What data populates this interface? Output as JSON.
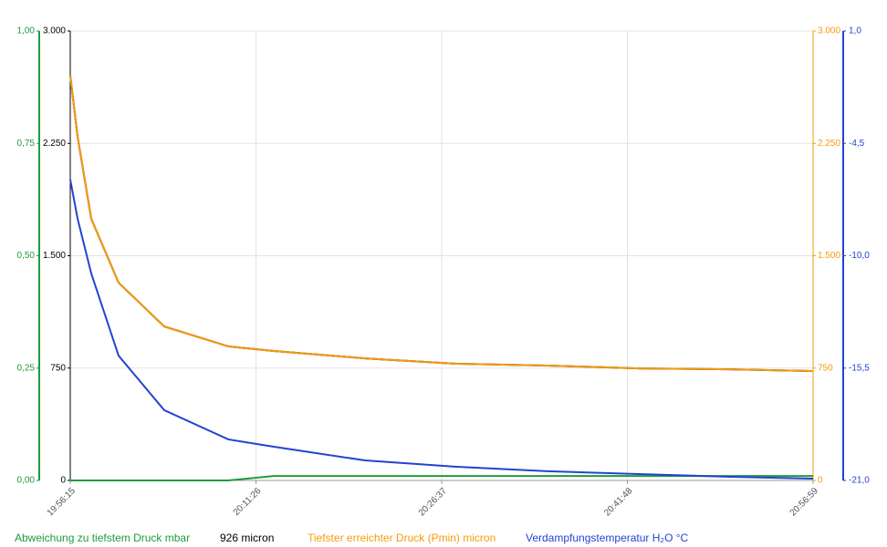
{
  "chart_data": {
    "type": "line",
    "x": [
      "19:56:15",
      "19:56:51",
      "19:57:58",
      "20:00:12",
      "20:03:56",
      "20:09:10",
      "20:12:53",
      "20:20:21",
      "20:27:49",
      "20:35:16",
      "20:42:44",
      "20:50:12",
      "20:56:59"
    ],
    "xlim": [
      "19:56:15",
      "20:56:59"
    ],
    "xticks": [
      "19:56:15",
      "20:11:26",
      "20:26:37",
      "20:41:48",
      "20:56:59"
    ],
    "grid": true,
    "ylim": [
      0,
      3000
    ],
    "yticks": [
      0,
      {
        "value": 750,
        "label": "750"
      },
      {
        "value": 1500,
        "label": "1.500"
      },
      {
        "value": 2250,
        "label": "2.250"
      },
      {
        "value": 3000,
        "label": "3.000"
      }
    ],
    "y2lim": [
      0,
      3000
    ],
    "y2ticks": [
      0,
      {
        "value": 750,
        "label": "750"
      },
      {
        "value": 1500,
        "label": "1.500"
      },
      {
        "value": 2250,
        "label": "2.250"
      },
      {
        "value": 3000,
        "label": "3.000"
      }
    ],
    "y3lim": [
      0,
      1
    ],
    "y3ticks": [
      {
        "value": 0,
        "label": "0,00"
      },
      {
        "value": 0.25,
        "label": "0,25"
      },
      {
        "value": 0.5,
        "label": "0,50"
      },
      {
        "value": 0.75,
        "label": "0,75"
      },
      {
        "value": 1,
        "label": "1,00"
      }
    ],
    "y4lim": [
      -21,
      1
    ],
    "y4ticks": [
      {
        "value": -21,
        "label": "-21,0"
      },
      {
        "value": -15.5,
        "label": "-15,5"
      },
      {
        "value": -10,
        "label": "-10,0"
      },
      {
        "value": -4.5,
        "label": "-4,5"
      },
      {
        "value": 1,
        "label": "1,0"
      }
    ],
    "series": [
      {
        "name": "Abweichung zu tiefstem Druck mbar",
        "color": "#1f9b3c",
        "axis": "y3",
        "values": [
          0,
          0,
          0,
          0,
          0,
          0,
          0.01,
          0.01,
          0.01,
          0.01,
          0.01,
          0.01,
          0.01
        ]
      },
      {
        "name": "926  micron",
        "color": "#000000",
        "axis": "y",
        "values": [
          2702,
          2294,
          1746,
          1320,
          1028,
          895,
          864,
          815,
          779,
          767,
          748,
          742,
          730
        ]
      },
      {
        "name": "Tiefster erreichter Druck (Pmin) micron",
        "color": "#f59b0c",
        "axis": "y2",
        "values": [
          2702,
          2294,
          1746,
          1320,
          1028,
          895,
          864,
          815,
          779,
          767,
          748,
          742,
          730
        ]
      },
      {
        "name": "Verdampfungstemperatur H₂O °C",
        "color": "#2443d0",
        "axis": "y4",
        "values": [
          -6.27,
          -8.19,
          -10.87,
          -14.89,
          -17.56,
          -18.99,
          -19.35,
          -20.02,
          -20.33,
          -20.55,
          -20.69,
          -20.82,
          -20.91
        ]
      }
    ]
  }
}
